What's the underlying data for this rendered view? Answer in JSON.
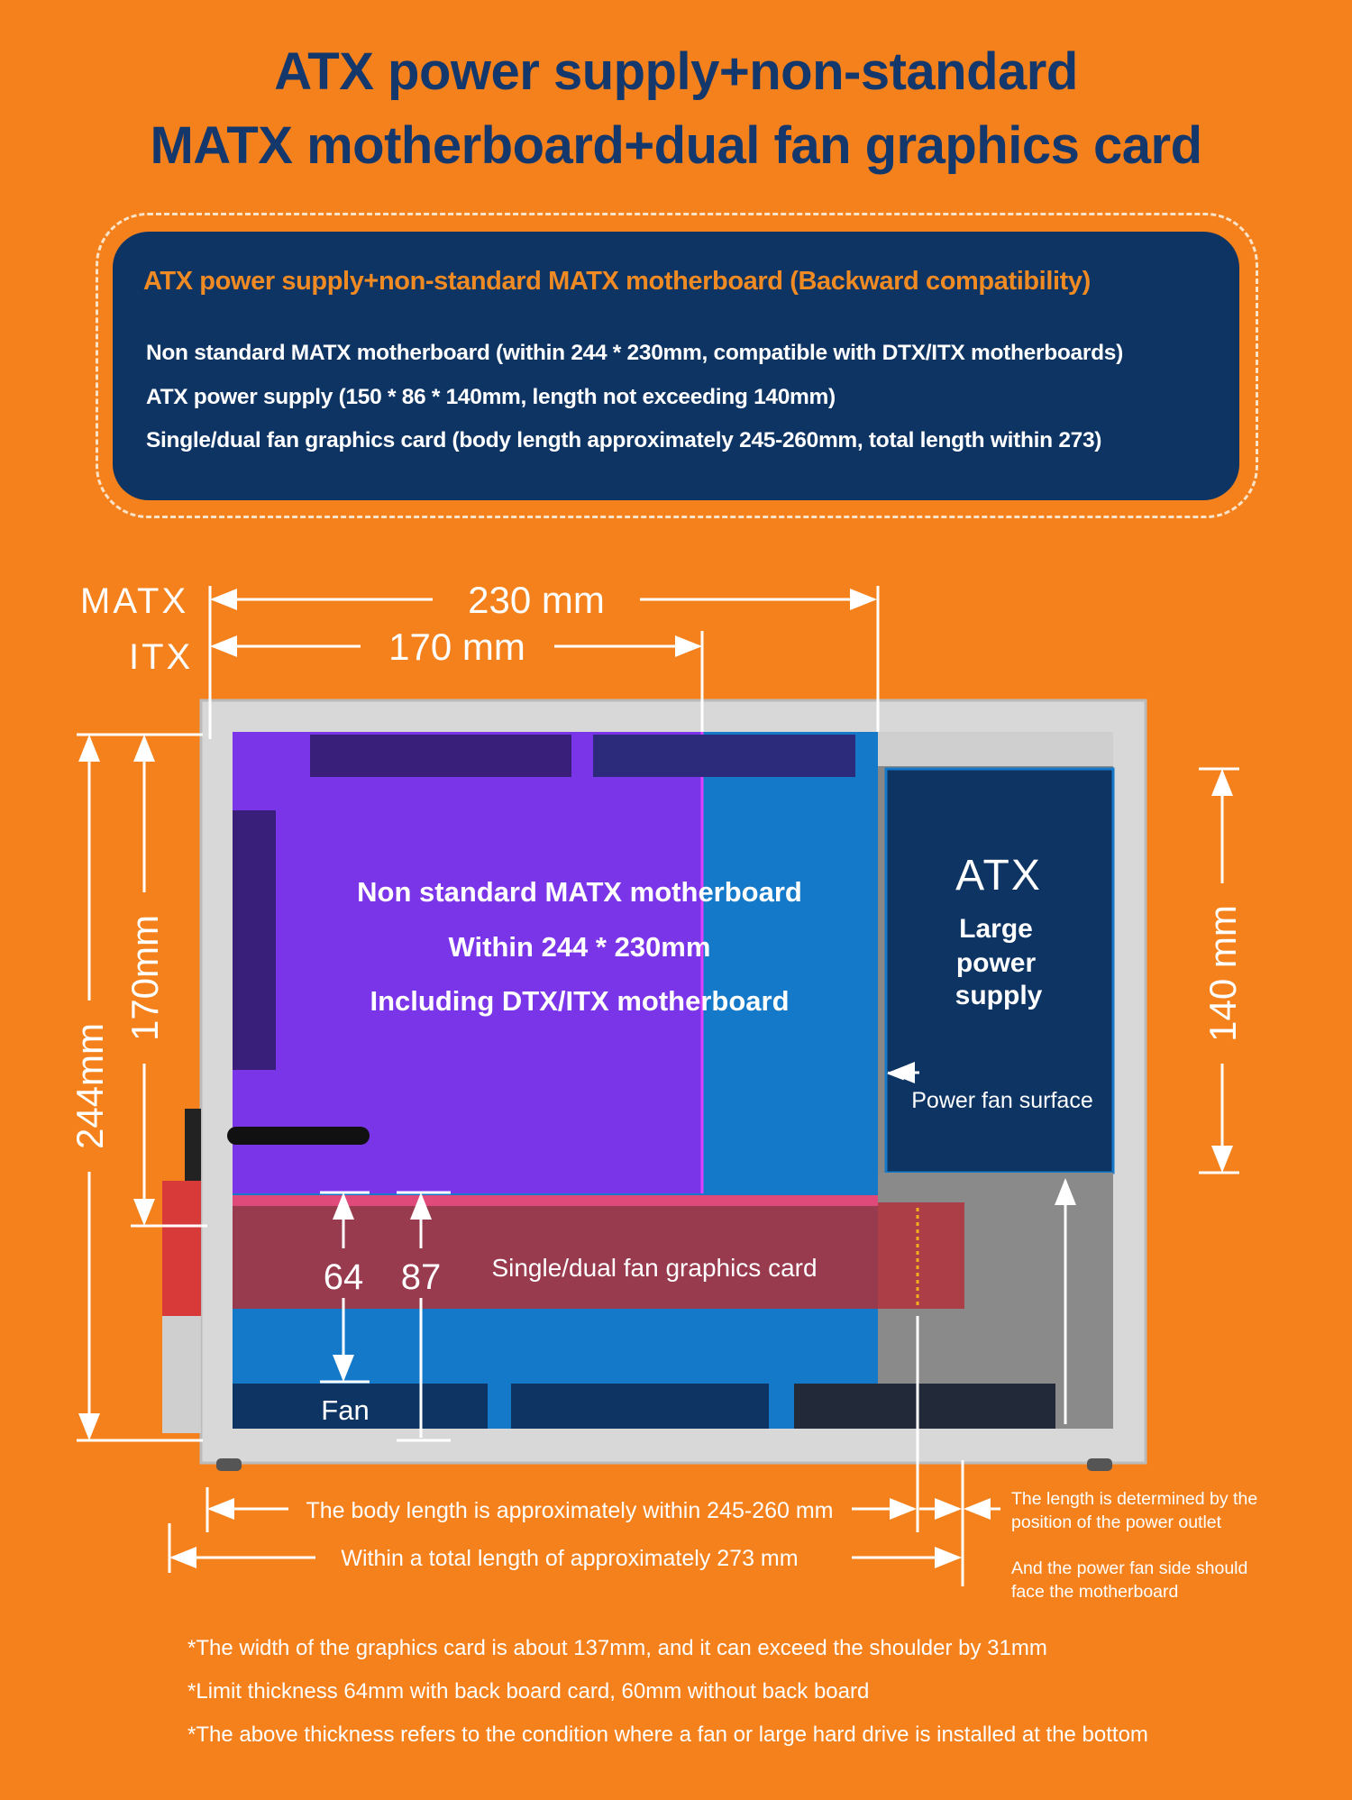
{
  "title": {
    "line1": "ATX power supply+non-standard",
    "line2": "MATX motherboard+dual fan graphics card"
  },
  "spec_box": {
    "heading": "ATX power supply+non-standard MATX motherboard (Backward compatibility)",
    "lines": [
      "Non standard MATX motherboard (within 244 * 230mm, compatible with DTX/ITX motherboards)",
      "ATX power supply (150 * 86 * 140mm, length not exceeding 140mm)",
      "Single/dual fan graphics card (body length approximately 245-260mm, total length within 273)"
    ]
  },
  "diagram": {
    "matx_label": "MATX",
    "itx_label": "ITX",
    "dim_230": "230 mm",
    "dim_170_h": "170 mm",
    "dim_244": "244mm",
    "dim_170_v": "170mm",
    "dim_140": "140 mm",
    "motherboard_lines": [
      "Non standard MATX motherboard",
      "Within 244 * 230mm",
      "Including DTX/ITX motherboard"
    ],
    "psu_title": "ATX",
    "psu_lines": [
      "Large",
      "power",
      "supply"
    ],
    "power_fan_surface": "Power fan surface",
    "thickness_64": "64",
    "thickness_87": "87",
    "gpu_label": "Single/dual fan graphics card",
    "fan_label": "Fan",
    "body_length": "The body length is approximately within 245-260 mm",
    "total_length": "Within a total length of approximately 273 mm",
    "side_note_1": [
      "The length is determined by the",
      "position of the power outlet"
    ],
    "side_note_2": [
      "And the power fan side should",
      "face the motherboard"
    ]
  },
  "notes": [
    "*The width of the graphics card is about 137mm, and it can exceed the shoulder by 31mm",
    "*Limit thickness 64mm with back board card, 60mm without back board",
    "*The above thickness refers to the condition where a fan or large hard drive is installed at the bottom"
  ],
  "colors": {
    "background": "#f4811c",
    "navy": "#0e3464",
    "motherboard": "#7b35e8",
    "gpu": "#c8303a"
  }
}
